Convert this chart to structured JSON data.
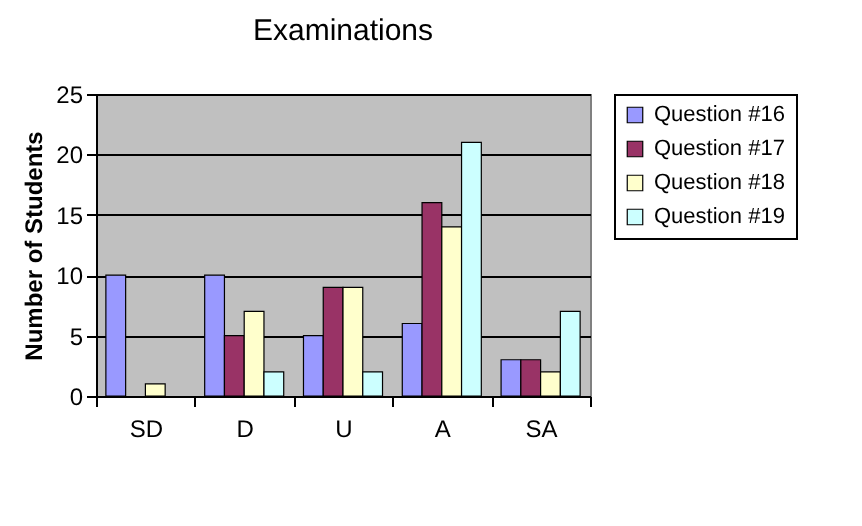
{
  "chart_data": {
    "type": "bar",
    "title": "Examinations",
    "ylabel": "Number of Students",
    "categories": [
      "SD",
      "D",
      "U",
      "A",
      "SA"
    ],
    "series": [
      {
        "name": "Question #16",
        "color": "#9999ff",
        "values": [
          10,
          10,
          5,
          6,
          3
        ]
      },
      {
        "name": "Question #17",
        "color": "#993366",
        "values": [
          0,
          5,
          9,
          16,
          3
        ]
      },
      {
        "name": "Question #18",
        "color": "#ffffcc",
        "values": [
          1,
          7,
          9,
          14,
          2
        ]
      },
      {
        "name": "Question #19",
        "color": "#ccffff",
        "values": [
          0,
          2,
          2,
          21,
          7
        ]
      }
    ],
    "ylim": [
      0,
      25
    ],
    "yticks": [
      0,
      5,
      10,
      15,
      20,
      25
    ],
    "grid": "y",
    "legend": "right"
  }
}
